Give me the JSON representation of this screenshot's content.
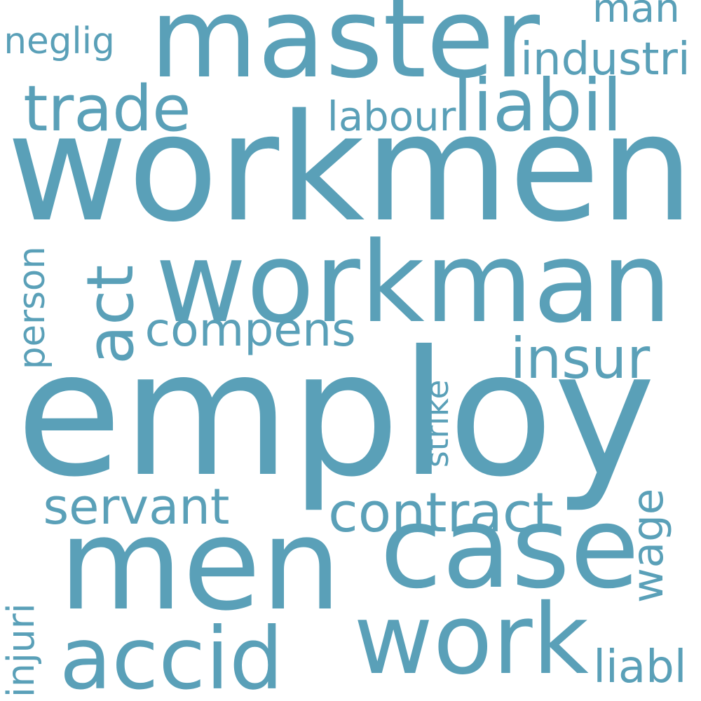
{
  "colors": {
    "word": "#5aa0b8",
    "background": "#ffffff"
  },
  "words": [
    {
      "id": "workmen",
      "text": "workmen"
    },
    {
      "id": "employ",
      "text": "employ"
    },
    {
      "id": "men",
      "text": "men"
    },
    {
      "id": "workman",
      "text": "workman"
    },
    {
      "id": "master",
      "text": "master"
    },
    {
      "id": "case",
      "text": "case"
    },
    {
      "id": "work",
      "text": "work"
    },
    {
      "id": "accid",
      "text": "accid"
    },
    {
      "id": "liabil",
      "text": "liabil"
    },
    {
      "id": "trade",
      "text": "trade"
    },
    {
      "id": "insur",
      "text": "insur"
    },
    {
      "id": "act",
      "text": "act"
    },
    {
      "id": "contract",
      "text": "contract"
    },
    {
      "id": "compens",
      "text": "compens"
    },
    {
      "id": "servant",
      "text": "servant"
    },
    {
      "id": "injuri",
      "text": "injuri"
    },
    {
      "id": "wage",
      "text": "wage"
    },
    {
      "id": "neglig",
      "text": "neglig"
    },
    {
      "id": "man",
      "text": "man"
    },
    {
      "id": "industri",
      "text": "industri"
    },
    {
      "id": "labour",
      "text": "labour"
    },
    {
      "id": "strike",
      "text": "strike"
    },
    {
      "id": "person",
      "text": "person"
    },
    {
      "id": "liabl",
      "text": "liabl"
    }
  ]
}
